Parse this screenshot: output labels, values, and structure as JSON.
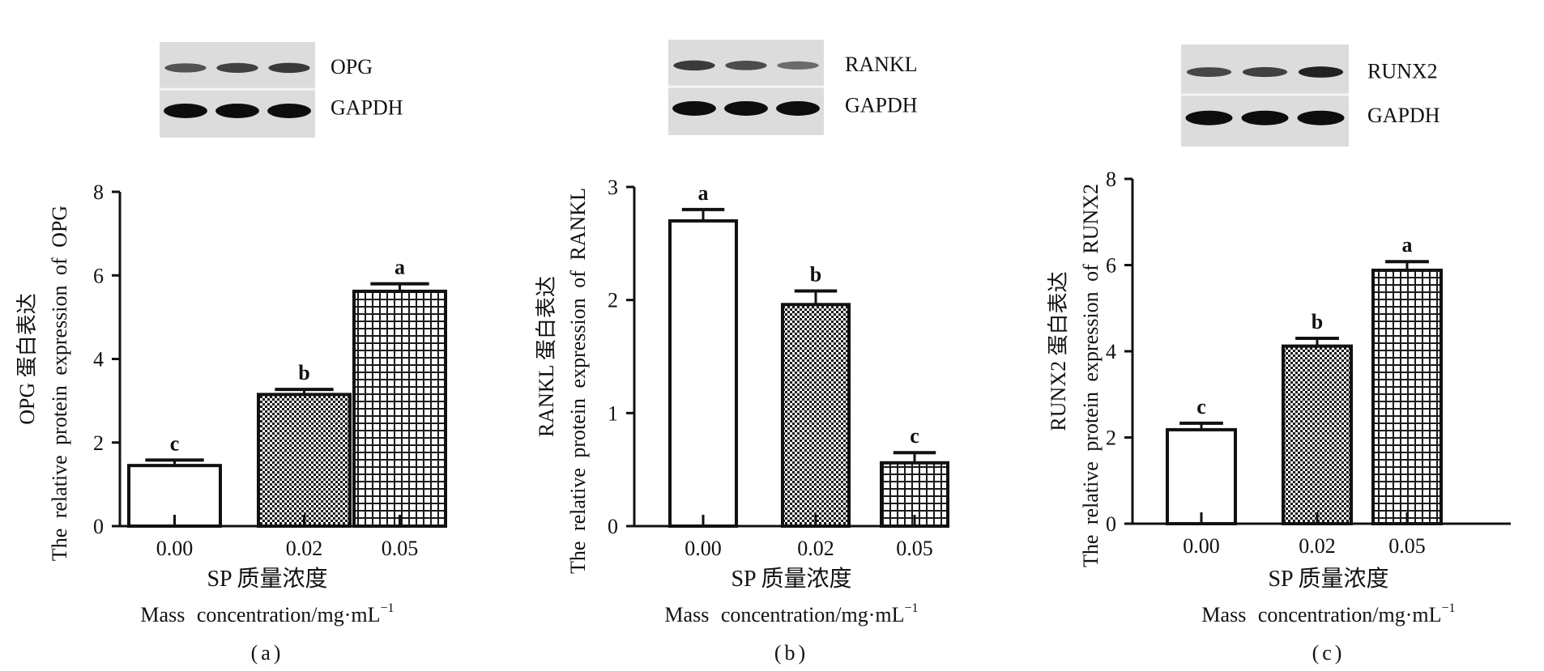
{
  "chart_data": [
    {
      "type": "bar",
      "panel_label": "(a)",
      "blot": {
        "target_label": "OPG",
        "control_label": "GAPDH",
        "target_band_strength": [
          0.55,
          0.7,
          0.75
        ]
      },
      "categories": [
        "0.00",
        "0.02",
        "0.05"
      ],
      "values": [
        1.45,
        3.15,
        5.62
      ],
      "errors": [
        0.13,
        0.12,
        0.18
      ],
      "significance": [
        "c",
        "b",
        "a"
      ],
      "fills": [
        "open",
        "dense-check",
        "grid"
      ],
      "ylim": [
        0,
        8
      ],
      "yticks": [
        "0",
        "2",
        "4",
        "6",
        "8"
      ],
      "ylabel": "OPG 蛋白表达",
      "ylabel2": "The relative protein expression of OPG",
      "xlabel": "SP 质量浓度",
      "xlabel2": "Mass concentration/mg·mL",
      "xlabel2_sup": "−1"
    },
    {
      "type": "bar",
      "panel_label": "(b)",
      "blot": {
        "target_label": "RANKL",
        "control_label": "GAPDH",
        "target_band_strength": [
          0.75,
          0.6,
          0.35
        ]
      },
      "categories": [
        "0.00",
        "0.02",
        "0.05"
      ],
      "values": [
        2.7,
        1.96,
        0.56
      ],
      "errors": [
        0.1,
        0.12,
        0.09
      ],
      "significance": [
        "a",
        "b",
        "c"
      ],
      "fills": [
        "open",
        "dense-check",
        "grid"
      ],
      "ylim": [
        0,
        3
      ],
      "yticks": [
        "0",
        "1",
        "2",
        "3"
      ],
      "ylabel": "RANKL 蛋白表达",
      "ylabel2": "The relative protein expression of RANKL",
      "xlabel": "SP 质量浓度",
      "xlabel2": "Mass concentration/mg·mL",
      "xlabel2_sup": "−1"
    },
    {
      "type": "bar",
      "panel_label": "(c)",
      "blot": {
        "target_label": "RUNX2",
        "control_label": "GAPDH",
        "target_band_strength": [
          0.65,
          0.7,
          0.95
        ]
      },
      "categories": [
        "0.00",
        "0.02",
        "0.05"
      ],
      "values": [
        2.18,
        4.12,
        5.88
      ],
      "errors": [
        0.15,
        0.18,
        0.2
      ],
      "significance": [
        "c",
        "b",
        "a"
      ],
      "fills": [
        "open",
        "dense-check",
        "grid"
      ],
      "ylim": [
        0,
        8
      ],
      "yticks": [
        "0",
        "2",
        "4",
        "6",
        "8"
      ],
      "ylabel": "RUNX2 蛋白表达",
      "ylabel2": "The relative protein expression of RUNX2",
      "xlabel": "SP 质量浓度",
      "xlabel2": "Mass concentration/mg·mL",
      "xlabel2_sup": "−1"
    }
  ]
}
